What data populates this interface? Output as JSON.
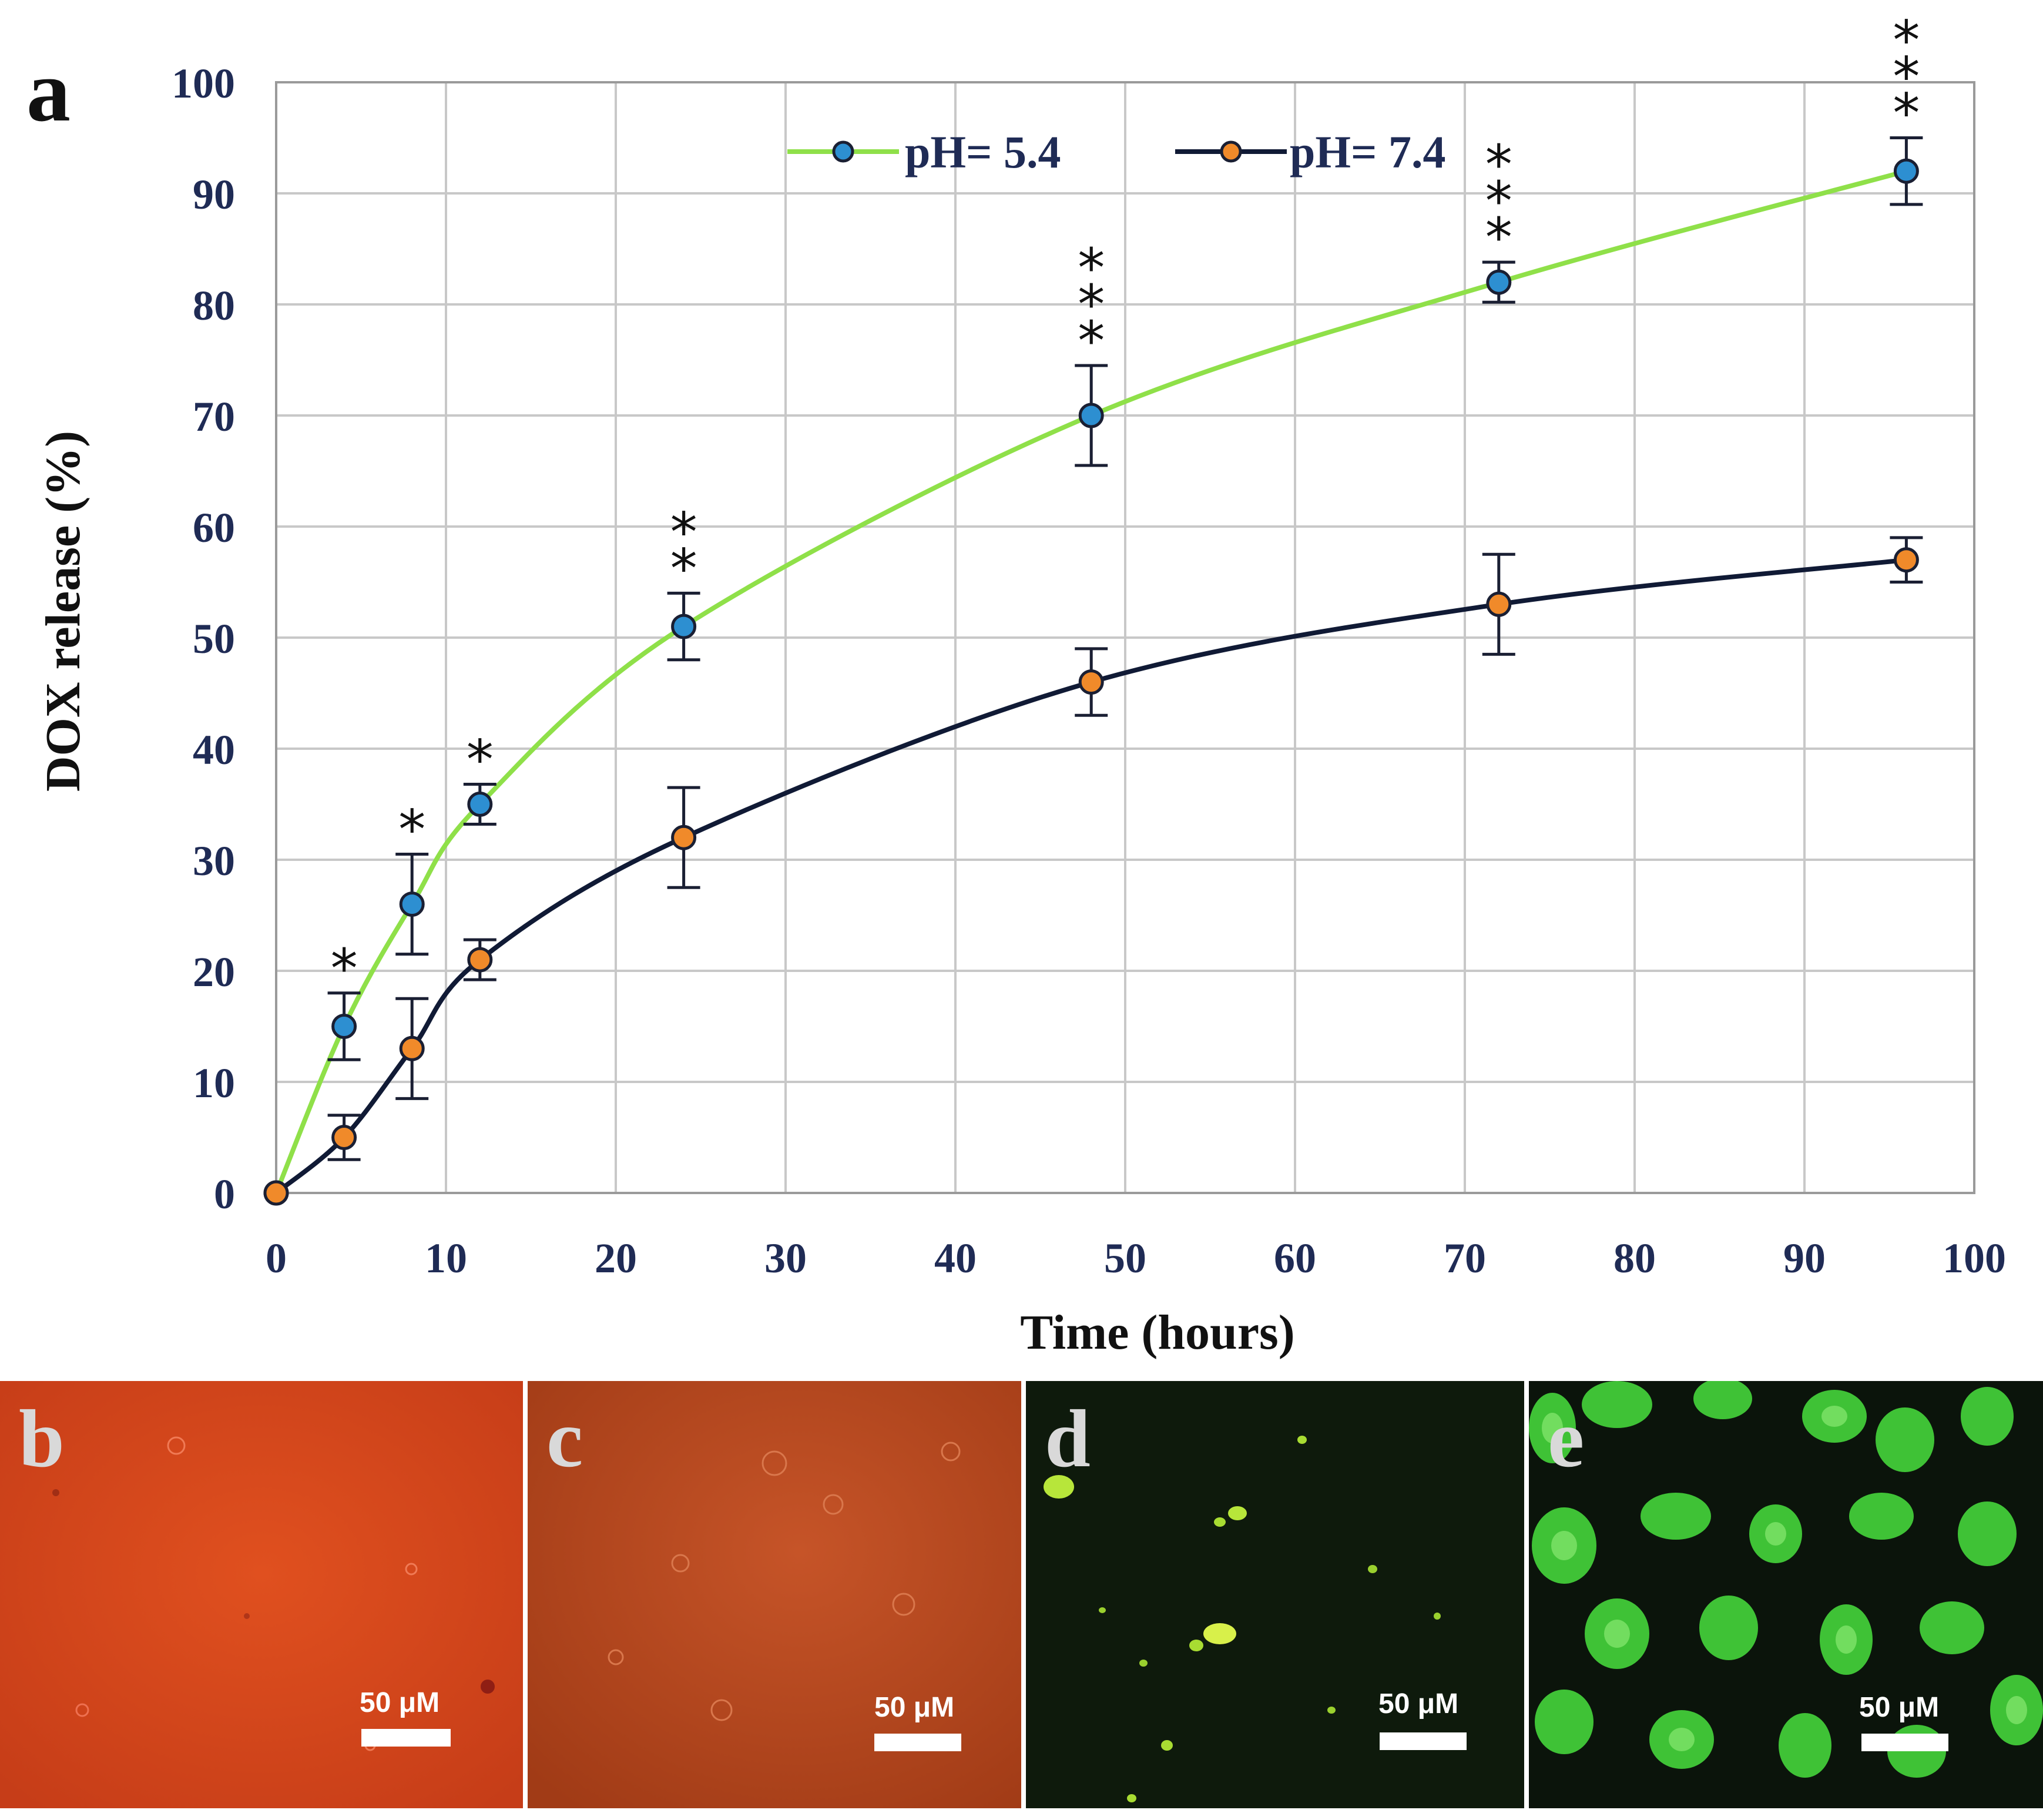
{
  "figure_label": "a",
  "chart_data": {
    "type": "line",
    "title": "",
    "xlabel": "Time (hours)",
    "ylabel": "DOX release (%)",
    "xlim": [
      0,
      100
    ],
    "ylim": [
      0,
      100
    ],
    "xticks": [
      0,
      10,
      20,
      30,
      40,
      50,
      60,
      70,
      80,
      90,
      100
    ],
    "yticks": [
      0,
      10,
      20,
      30,
      40,
      50,
      60,
      70,
      80,
      90,
      100
    ],
    "grid": true,
    "legend_position": "top",
    "x": [
      0,
      4,
      8,
      12,
      24,
      48,
      72,
      96
    ],
    "series": [
      {
        "name": "pH= 5.4",
        "line_color": "#8fe049",
        "marker_color": "#2d8fd1",
        "values": [
          0,
          15,
          26,
          35,
          51,
          70,
          82,
          92
        ],
        "errors": [
          0,
          3,
          4.5,
          1.8,
          3,
          4.5,
          1.8,
          3
        ],
        "significance": [
          "",
          "*",
          "*",
          "*",
          "**",
          "***",
          "***",
          "***"
        ]
      },
      {
        "name": "pH= 7.4",
        "line_color": "#101a35",
        "marker_color": "#f08a2a",
        "values": [
          0,
          5,
          13,
          21,
          32,
          46,
          53,
          57
        ],
        "errors": [
          0,
          2,
          4.5,
          1.8,
          4.5,
          3,
          4.5,
          2
        ]
      }
    ],
    "colors": {
      "axis_text": "#1f2b55",
      "grid": "#c8c8c8",
      "errorbar": "#1a1f33"
    }
  },
  "panels": [
    {
      "letter": "b",
      "scale_label": "50 μM",
      "background": "#d5451e"
    },
    {
      "letter": "c",
      "scale_label": "50 μM",
      "background": "#b94a1e"
    },
    {
      "letter": "d",
      "scale_label": "50 μM",
      "background": "#0e1a0c"
    },
    {
      "letter": "e",
      "scale_label": "50 μM",
      "background": "#0b140b"
    }
  ]
}
